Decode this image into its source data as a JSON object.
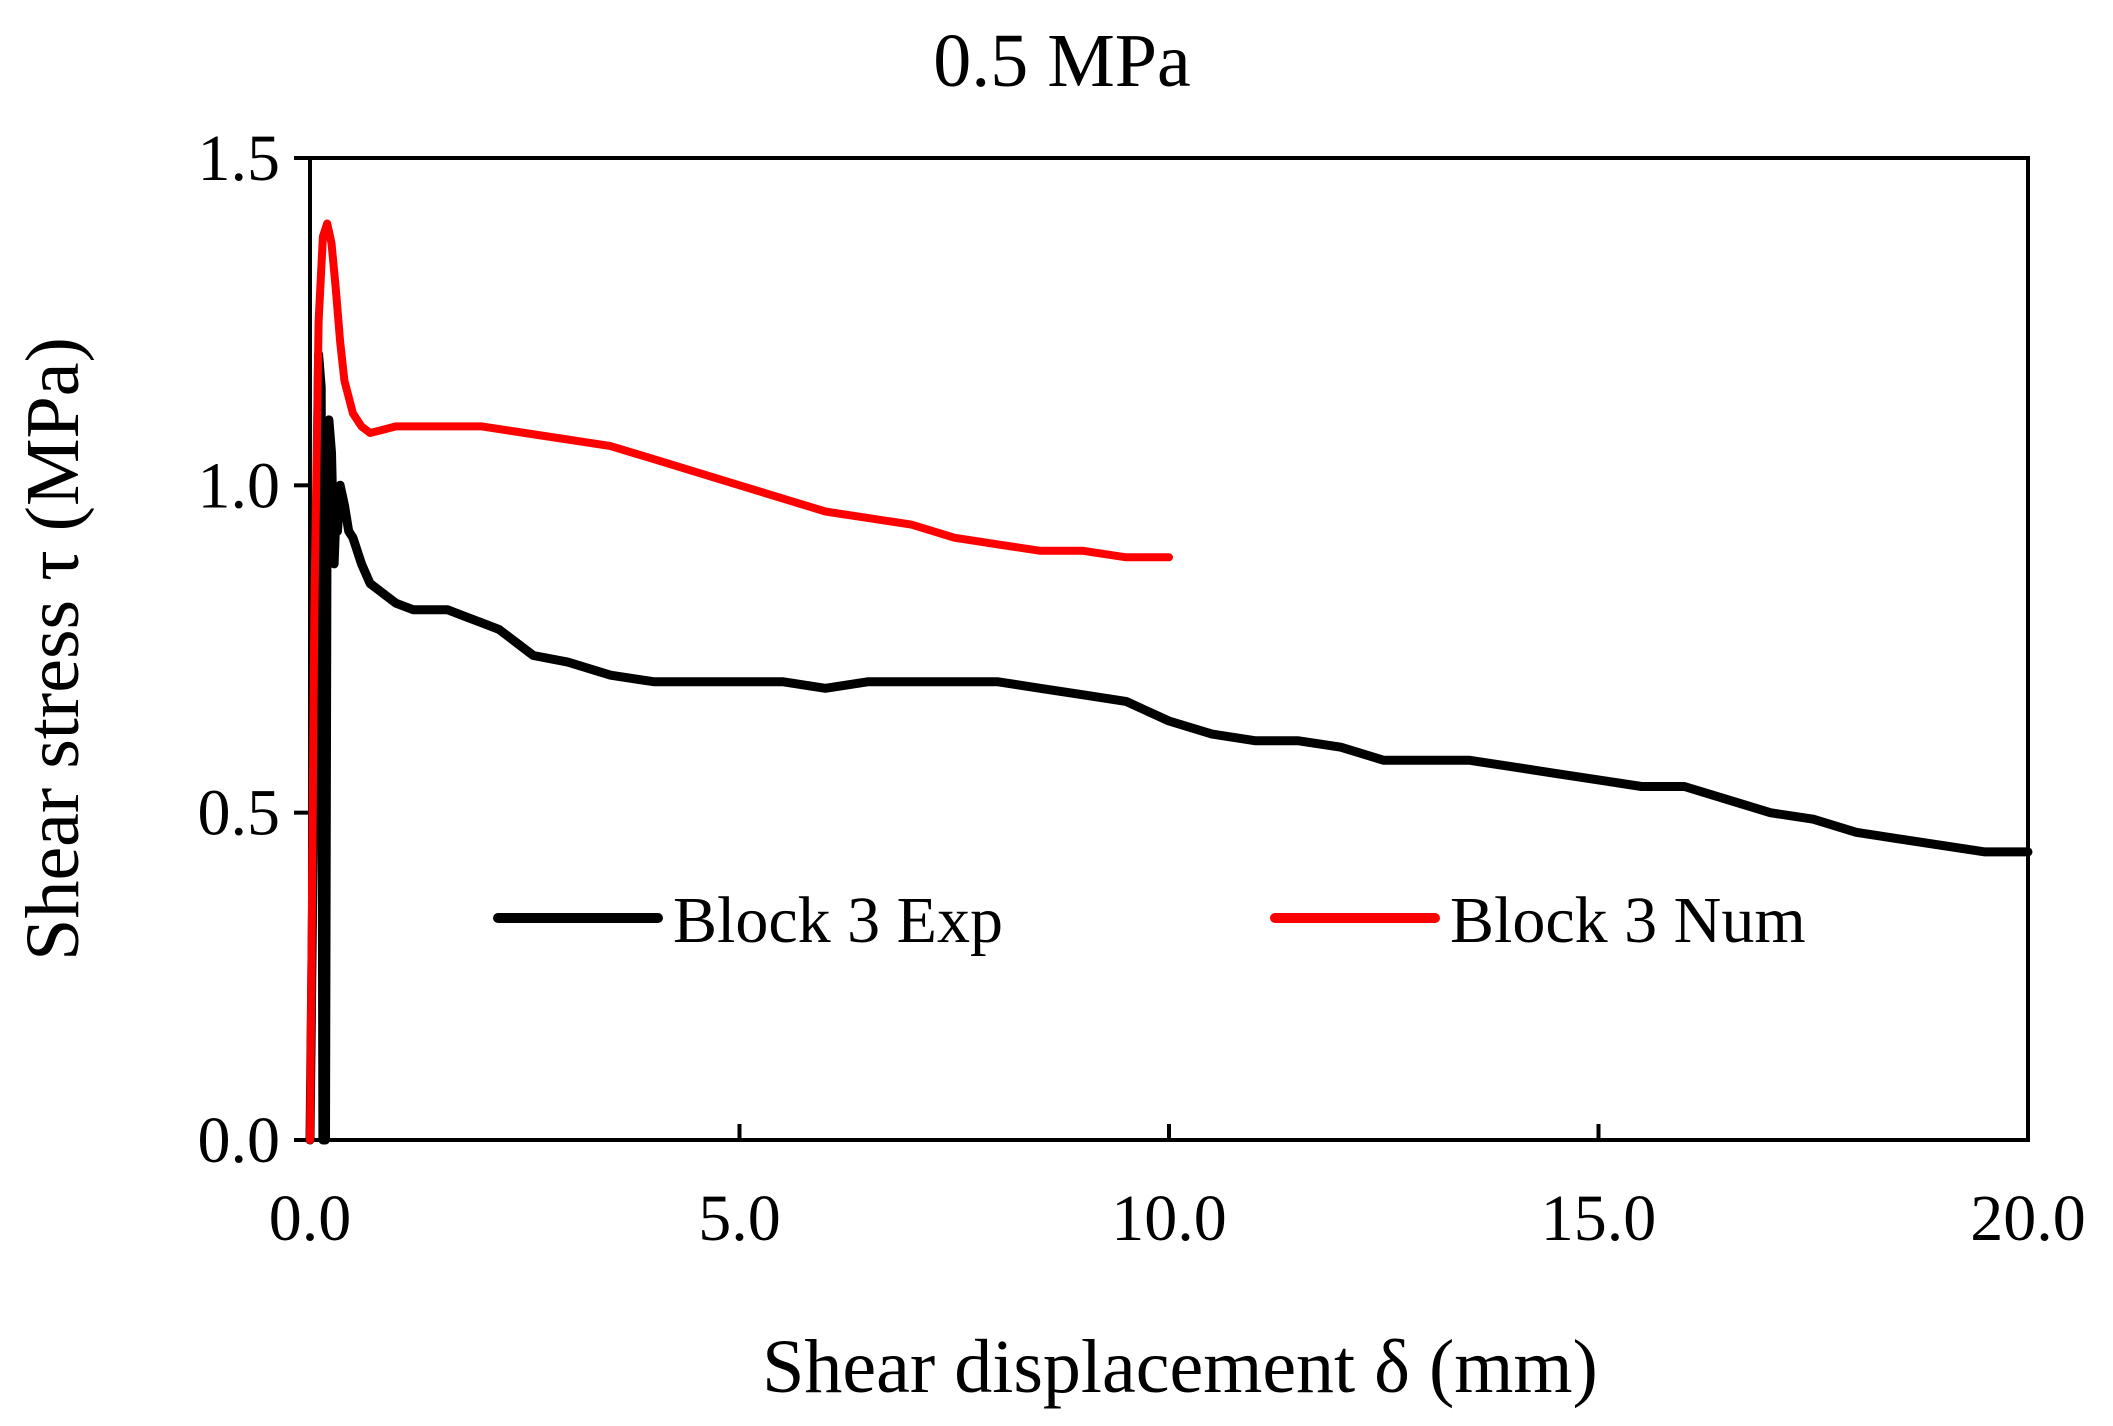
{
  "chart_data": {
    "type": "line",
    "title": "0.5 MPa",
    "xlabel": "Shear displacement δ (mm)",
    "ylabel": "Shear stress τ (MPa)",
    "xlim": [
      0,
      20
    ],
    "ylim": [
      0,
      1.5
    ],
    "xticks": [
      0,
      5,
      10,
      15,
      20
    ],
    "yticks": [
      0,
      0.5,
      1.0,
      1.5
    ],
    "xtick_labels": [
      "0.0",
      "5.0",
      "10.0",
      "15.0",
      "20.0"
    ],
    "ytick_labels": [
      "0.0",
      "0.5",
      "1.0",
      "1.5"
    ],
    "grid": false,
    "legend_position": "inside-lower-center",
    "series": [
      {
        "name": "Block 3 Exp",
        "color": "#000000",
        "x": [
          0.0,
          0.05,
          0.1,
          0.13,
          0.15,
          0.18,
          0.2,
          0.22,
          0.25,
          0.28,
          0.3,
          0.32,
          0.35,
          0.4,
          0.45,
          0.5,
          0.6,
          0.7,
          0.8,
          1.0,
          1.2,
          1.4,
          1.6,
          1.8,
          2.0,
          2.2,
          2.4,
          2.6,
          3.0,
          3.5,
          4.0,
          4.5,
          5.0,
          5.5,
          6.0,
          6.5,
          7.0,
          7.5,
          8.0,
          8.5,
          9.0,
          9.5,
          10.0,
          10.5,
          11.0,
          11.5,
          12.0,
          12.5,
          13.0,
          13.5,
          14.0,
          14.5,
          15.0,
          15.5,
          16.0,
          16.5,
          17.0,
          17.5,
          18.0,
          18.5,
          19.0,
          19.5,
          20.0
        ],
        "y": [
          0.0,
          0.6,
          1.2,
          1.15,
          0.0,
          0.0,
          1.05,
          1.1,
          1.05,
          0.88,
          0.95,
          0.93,
          1.0,
          0.97,
          0.93,
          0.92,
          0.88,
          0.85,
          0.84,
          0.82,
          0.81,
          0.81,
          0.81,
          0.8,
          0.79,
          0.78,
          0.76,
          0.74,
          0.73,
          0.71,
          0.7,
          0.7,
          0.7,
          0.7,
          0.69,
          0.7,
          0.7,
          0.7,
          0.7,
          0.69,
          0.68,
          0.67,
          0.64,
          0.62,
          0.61,
          0.61,
          0.6,
          0.58,
          0.58,
          0.58,
          0.57,
          0.56,
          0.55,
          0.54,
          0.54,
          0.52,
          0.5,
          0.49,
          0.47,
          0.46,
          0.45,
          0.44,
          0.44
        ]
      },
      {
        "name": "Block 3 Num",
        "color": "#ff0000",
        "x": [
          0.0,
          0.05,
          0.1,
          0.15,
          0.2,
          0.25,
          0.3,
          0.35,
          0.4,
          0.5,
          0.6,
          0.7,
          1.0,
          1.5,
          2.0,
          2.5,
          3.0,
          3.5,
          4.0,
          4.5,
          5.0,
          5.5,
          6.0,
          6.5,
          7.0,
          7.5,
          8.0,
          8.5,
          9.0,
          9.5,
          10.0
        ],
        "y": [
          0.0,
          0.8,
          1.25,
          1.38,
          1.4,
          1.37,
          1.3,
          1.22,
          1.16,
          1.11,
          1.09,
          1.08,
          1.09,
          1.09,
          1.09,
          1.08,
          1.07,
          1.06,
          1.04,
          1.02,
          1.0,
          0.98,
          0.96,
          0.95,
          0.94,
          0.92,
          0.91,
          0.9,
          0.9,
          0.89,
          0.89
        ]
      }
    ]
  }
}
